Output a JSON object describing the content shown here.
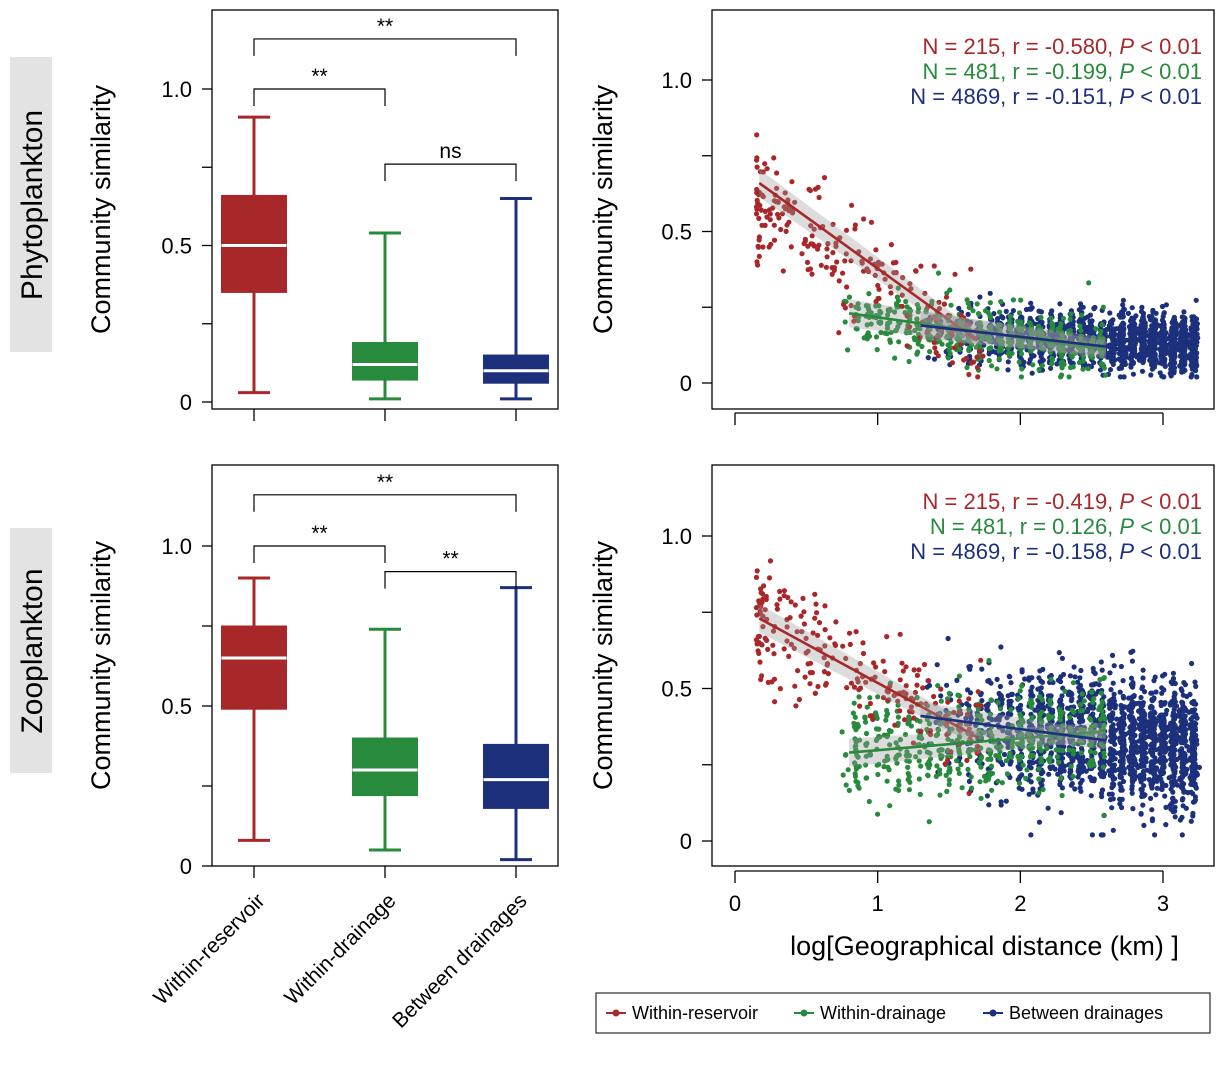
{
  "row_labels": [
    "Phytoplankton",
    "Zooplankton"
  ],
  "colors": {
    "within_reservoir": "#a8282a",
    "within_drainage": "#278a3c",
    "between_drainages": "#1c307c"
  },
  "legend": {
    "items": [
      {
        "label": "Within-reservoir",
        "color": "#a8282a"
      },
      {
        "label": "Within-drainage",
        "color": "#278a3c"
      },
      {
        "label": "Between drainages",
        "color": "#1c307c"
      }
    ]
  },
  "chart_data": [
    {
      "type": "box",
      "row": "Phytoplankton",
      "ylabel": "Community similarity",
      "ylim": [
        0,
        1.25
      ],
      "yticks": [
        "0",
        "0.5",
        "1.0"
      ],
      "categories": [
        "Within-reservoir",
        "Within-drainage",
        "Between drainages"
      ],
      "boxes": [
        {
          "min": 0.03,
          "q1": 0.35,
          "median": 0.5,
          "q3": 0.66,
          "max": 0.91
        },
        {
          "min": 0.01,
          "q1": 0.07,
          "median": 0.12,
          "q3": 0.19,
          "max": 0.54
        },
        {
          "min": 0.01,
          "q1": 0.06,
          "median": 0.1,
          "q3": 0.15,
          "max": 0.65
        }
      ],
      "comparisons": [
        {
          "from": 0,
          "to": 2,
          "label": "**",
          "level": 1.16
        },
        {
          "from": 0,
          "to": 1,
          "label": "**",
          "level": 1.0
        },
        {
          "from": 1,
          "to": 2,
          "label": "ns",
          "level": 0.76
        }
      ]
    },
    {
      "type": "scatter",
      "row": "Phytoplankton",
      "ylabel": "Community similarity",
      "xlabel": "",
      "xlim": [
        0,
        3.3
      ],
      "ylim": [
        -0.1,
        1.25
      ],
      "yticks": [
        "0",
        "0.5",
        "1.0"
      ],
      "xticks": [
        0,
        1,
        2,
        3
      ],
      "xticklabels": false,
      "annotations": [
        {
          "text": "N = 215, r = -0.580, ",
          "p": "P",
          "rest": " < 0.01",
          "series": "Within-reservoir"
        },
        {
          "text": "N = 481, r = -0.199, ",
          "p": "P",
          "rest": " < 0.01",
          "series": "Within-drainage"
        },
        {
          "text": "N = 4869, r = -0.151, ",
          "p": "P",
          "rest": " < 0.01",
          "series": "Between drainages"
        }
      ],
      "series": [
        {
          "name": "Within-reservoir",
          "n": 215,
          "x_range": [
            0.15,
            1.75
          ],
          "y_mean": [
            0.61,
            0.14
          ],
          "y_spread": 0.17,
          "fit": [
            [
              0.17,
              0.66
            ],
            [
              1.7,
              0.14
            ]
          ]
        },
        {
          "name": "Within-drainage",
          "n": 481,
          "x_range": [
            0.8,
            2.6
          ],
          "y_mean": [
            0.22,
            0.11
          ],
          "y_spread": 0.09,
          "fit": [
            [
              0.8,
              0.23
            ],
            [
              2.6,
              0.11
            ]
          ]
        },
        {
          "name": "Between drainages",
          "n": 4869,
          "x_range": [
            1.3,
            3.25
          ],
          "y_mean": [
            0.17,
            0.13
          ],
          "y_spread": 0.08,
          "fit": [
            [
              1.3,
              0.19
            ],
            [
              2.6,
              0.12
            ]
          ]
        }
      ]
    },
    {
      "type": "box",
      "row": "Zooplankton",
      "ylabel": "Community similarity",
      "ylim": [
        0,
        1.25
      ],
      "yticks": [
        "0",
        "0.5",
        "1.0"
      ],
      "categories": [
        "Within-reservoir",
        "Within-drainage",
        "Between drainages"
      ],
      "boxes": [
        {
          "min": 0.08,
          "q1": 0.49,
          "median": 0.65,
          "q3": 0.75,
          "max": 0.9
        },
        {
          "min": 0.05,
          "q1": 0.22,
          "median": 0.3,
          "q3": 0.4,
          "max": 0.74
        },
        {
          "min": 0.02,
          "q1": 0.18,
          "median": 0.27,
          "q3": 0.38,
          "max": 0.87
        }
      ],
      "comparisons": [
        {
          "from": 0,
          "to": 2,
          "label": "**",
          "level": 1.16
        },
        {
          "from": 0,
          "to": 1,
          "label": "**",
          "level": 1.0
        },
        {
          "from": 1,
          "to": 2,
          "label": "**",
          "level": 0.92
        }
      ]
    },
    {
      "type": "scatter",
      "row": "Zooplankton",
      "ylabel": "Community similarity",
      "xlabel": "log[Geographical distance (km) ]",
      "xlim": [
        0,
        3.3
      ],
      "ylim": [
        -0.1,
        1.25
      ],
      "yticks": [
        "0",
        "0.5",
        "1.0"
      ],
      "xticks": [
        0,
        1,
        2,
        3
      ],
      "xticklabels": true,
      "annotations": [
        {
          "text": "N = 215, r = -0.419, ",
          "p": "P",
          "rest": " < 0.01",
          "series": "Within-reservoir"
        },
        {
          "text": "N = 481, r = 0.126, ",
          "p": "P",
          "rest": " < 0.01",
          "series": "Within-drainage"
        },
        {
          "text": "N = 4869, r = -0.158, ",
          "p": "P",
          "rest": " < 0.01",
          "series": "Between drainages"
        }
      ],
      "series": [
        {
          "name": "Within-reservoir",
          "n": 215,
          "x_range": [
            0.15,
            1.75
          ],
          "y_mean": [
            0.72,
            0.35
          ],
          "y_spread": 0.18,
          "fit": [
            [
              0.17,
              0.73
            ],
            [
              1.7,
              0.34
            ]
          ]
        },
        {
          "name": "Within-drainage",
          "n": 481,
          "x_range": [
            0.8,
            2.6
          ],
          "y_mean": [
            0.29,
            0.36
          ],
          "y_spread": 0.15,
          "fit": [
            [
              0.8,
              0.29
            ],
            [
              2.6,
              0.36
            ]
          ]
        },
        {
          "name": "Between drainages",
          "n": 4869,
          "x_range": [
            1.3,
            3.25
          ],
          "y_mean": [
            0.4,
            0.3
          ],
          "y_spread": 0.18,
          "fit": [
            [
              1.3,
              0.41
            ],
            [
              2.6,
              0.33
            ]
          ]
        }
      ]
    }
  ]
}
